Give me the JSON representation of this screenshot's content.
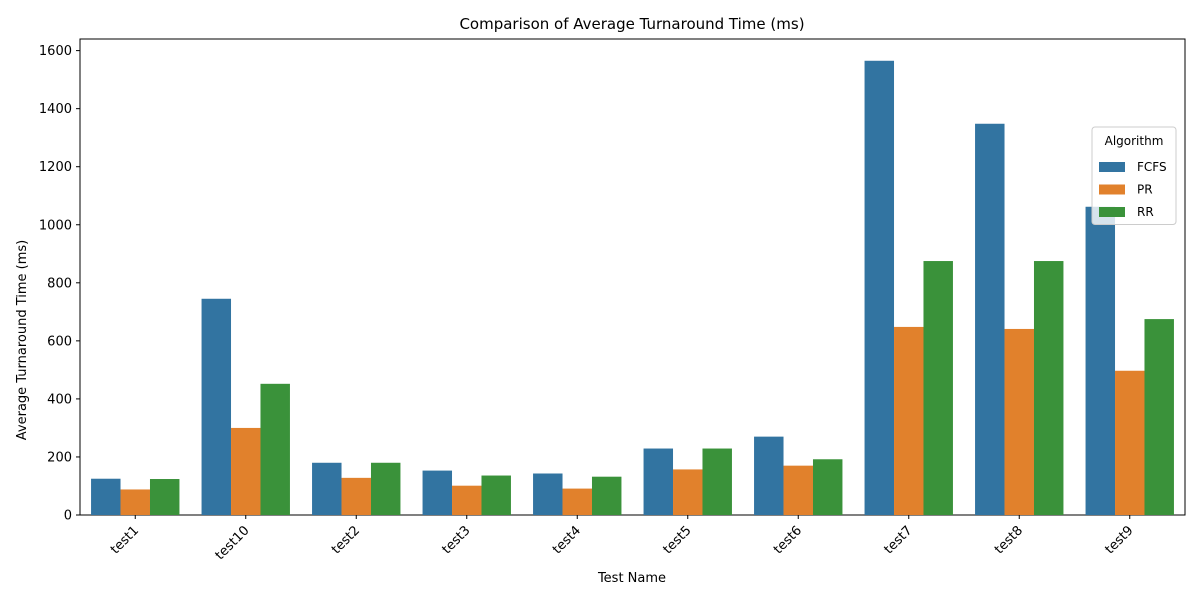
{
  "chart_data": {
    "type": "bar",
    "title": "Comparison of Average Turnaround Time (ms)",
    "xlabel": "Test Name",
    "ylabel": "Average Turnaround Time (ms)",
    "ylim": [
      0,
      1640
    ],
    "yticks": [
      0,
      200,
      400,
      600,
      800,
      1000,
      1200,
      1400,
      1600
    ],
    "categories": [
      "test1",
      "test10",
      "test2",
      "test3",
      "test4",
      "test5",
      "test6",
      "test7",
      "test8",
      "test9"
    ],
    "legend": {
      "title": "Algorithm",
      "position": "top-right"
    },
    "grid": false,
    "series": [
      {
        "name": "FCFS",
        "color": "#3274a1",
        "values": [
          125,
          745,
          180,
          153,
          143,
          229,
          270,
          1565,
          1348,
          1062
        ]
      },
      {
        "name": "PR",
        "color": "#e1812c",
        "values": [
          88,
          300,
          128,
          101,
          91,
          157,
          170,
          648,
          641,
          497
        ]
      },
      {
        "name": "RR",
        "color": "#3a923a",
        "values": [
          124,
          452,
          180,
          136,
          132,
          229,
          192,
          875,
          875,
          675
        ]
      }
    ]
  }
}
